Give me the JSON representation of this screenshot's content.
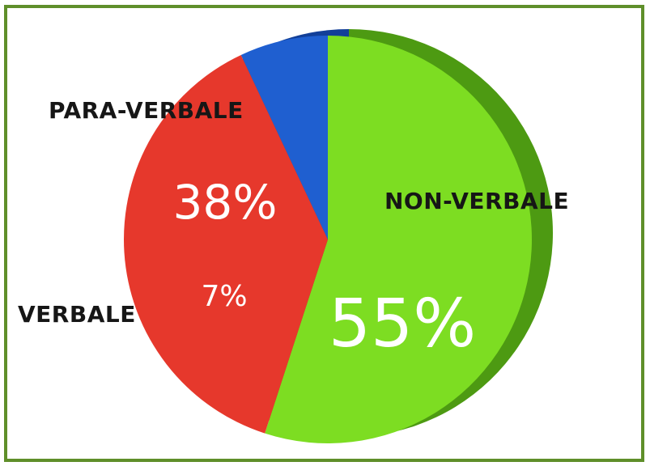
{
  "chart_data": {
    "type": "pie",
    "categories": [
      "NON-VERBALE",
      "PARA-VERBALE",
      "VERBALE"
    ],
    "values": [
      55,
      38,
      7
    ],
    "value_labels": [
      "55%",
      "38%",
      "7%"
    ],
    "colors": [
      "#7ddd22",
      "#e6382c",
      "#1f5fd0"
    ],
    "side_colors": [
      "#4d9a12",
      "#a82418",
      "#123f98"
    ],
    "title": "",
    "legend": "none",
    "border_color": "#5f8f2a"
  }
}
